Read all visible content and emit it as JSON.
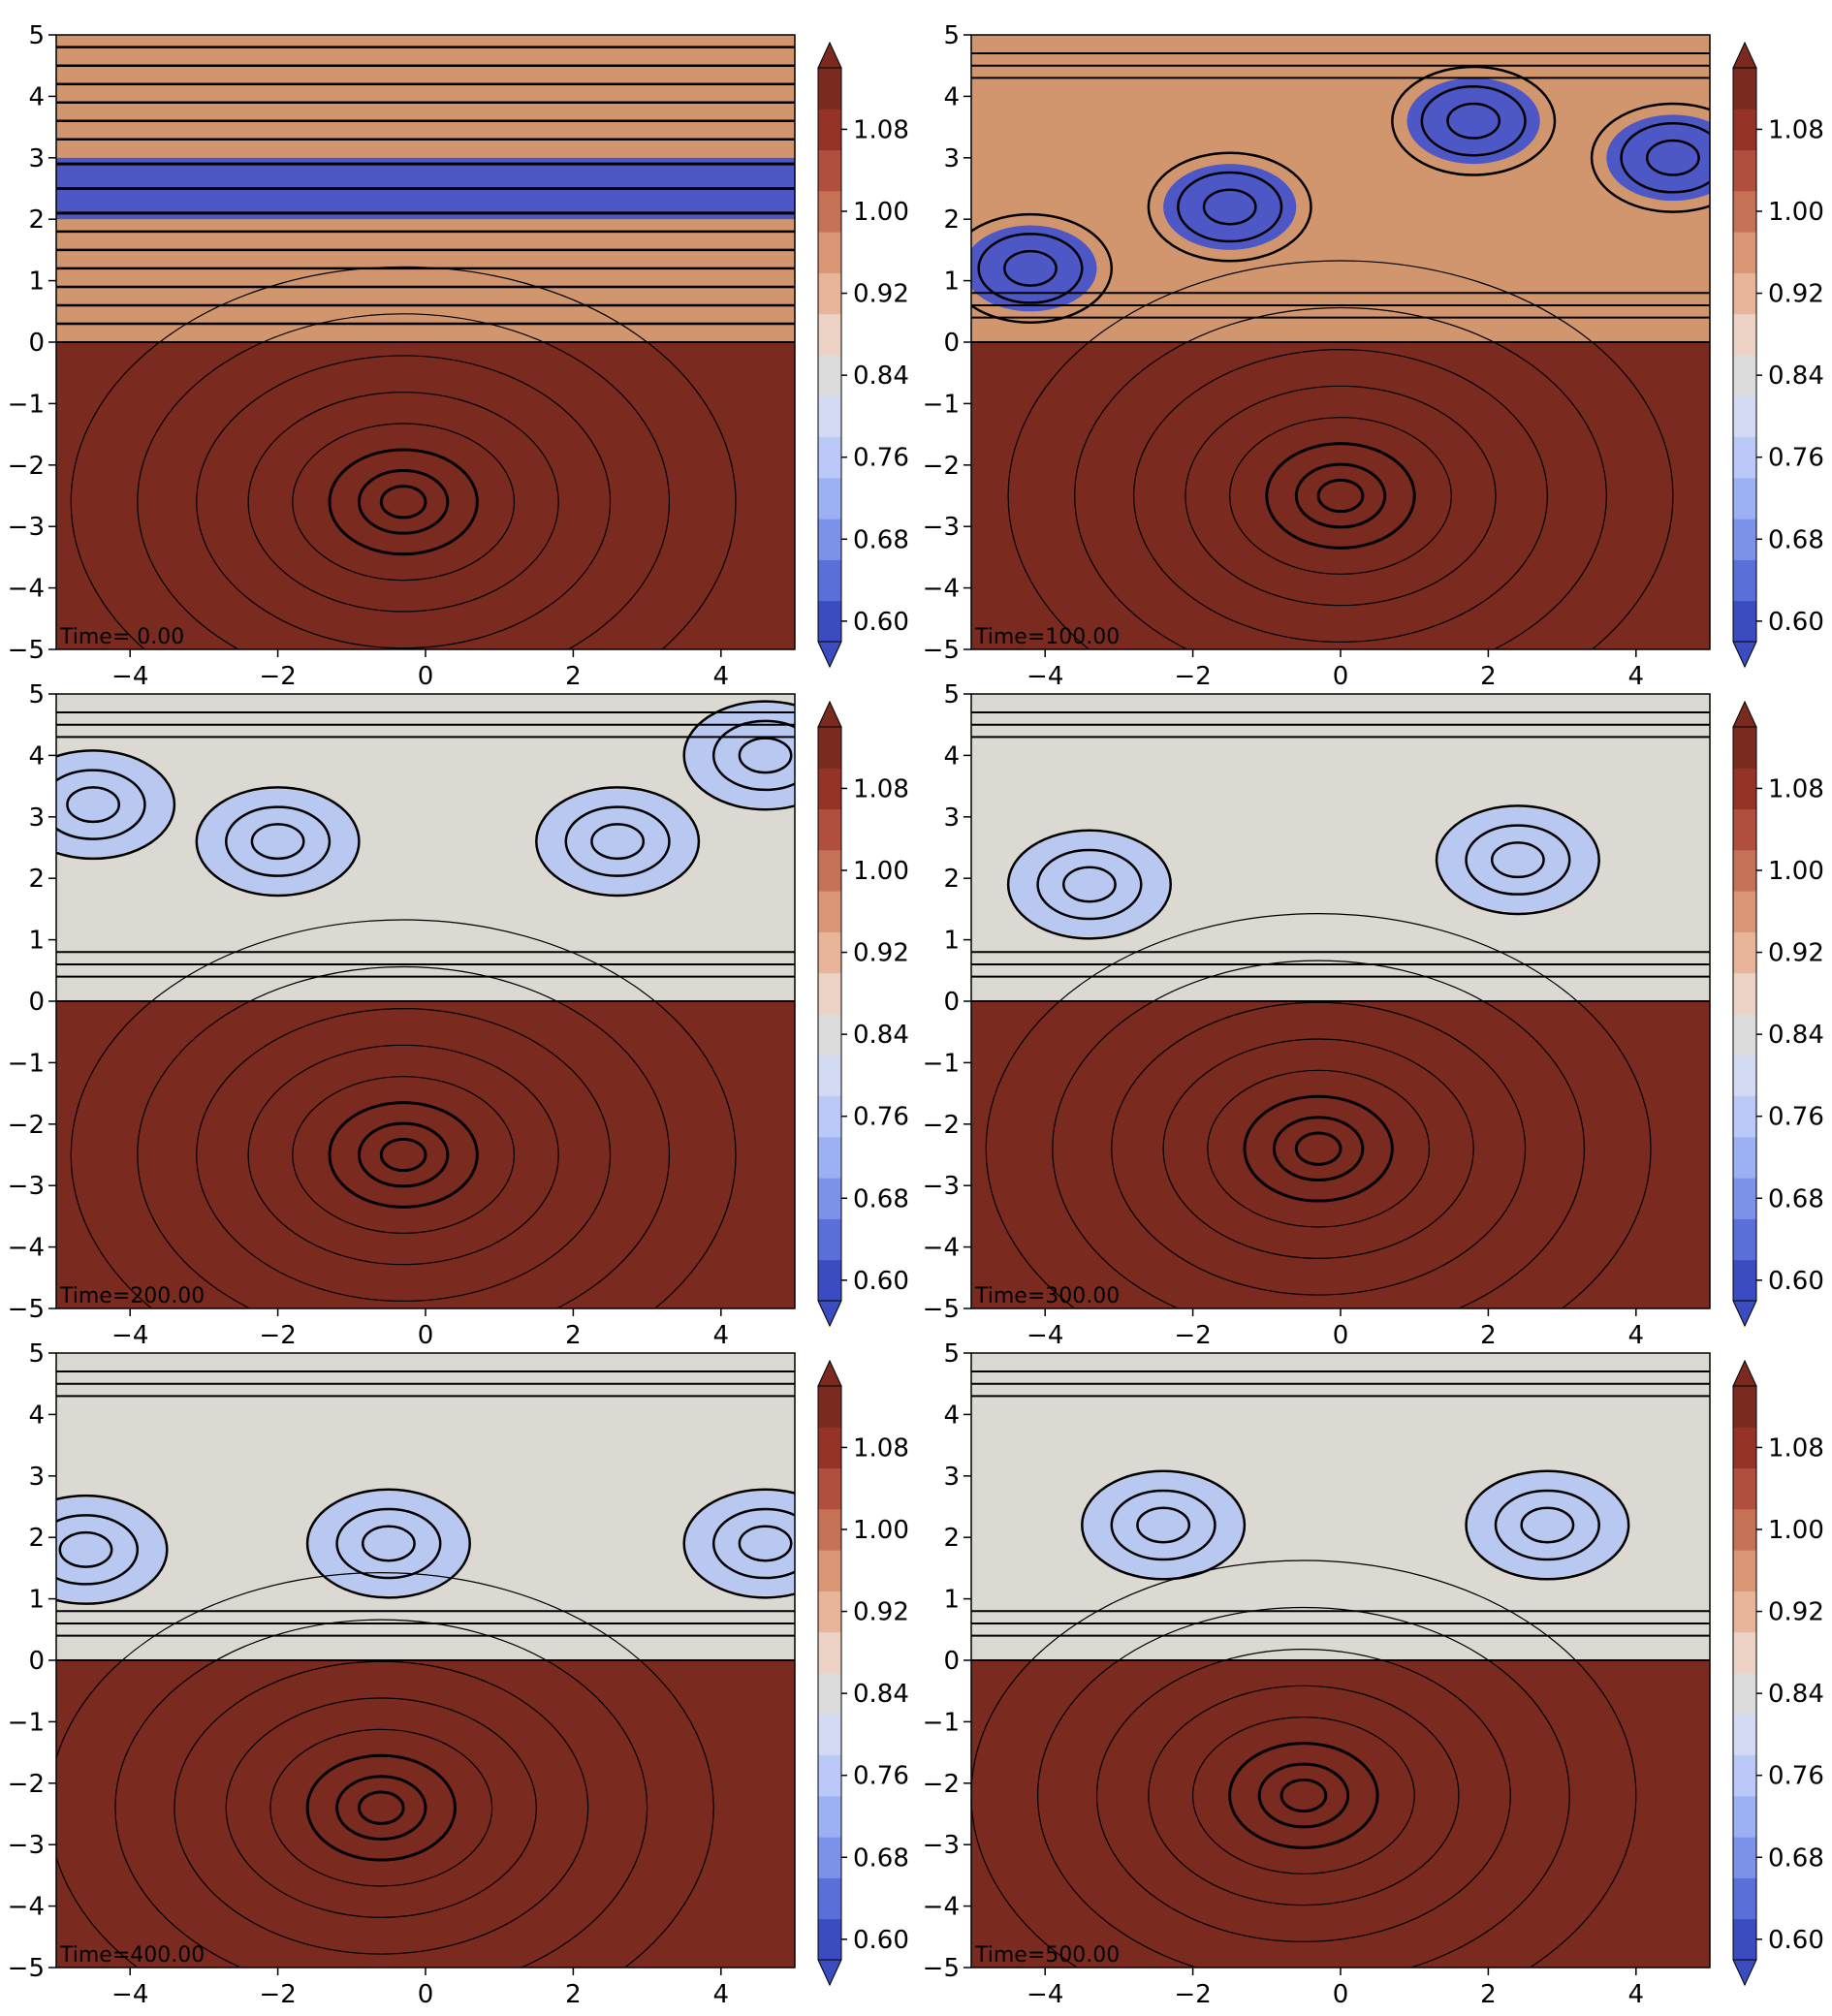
{
  "figure": {
    "type": "grid of contour plots with streamlines",
    "layout": {
      "rows": 3,
      "cols": 2
    }
  },
  "colors": {
    "dark_red": "#7b2a20",
    "tan": "#d2966f",
    "light_grey": "#dcd8d2",
    "light_blue": "#b8c8f0",
    "blue": "#4d57c6",
    "streamline": "#000000"
  },
  "colorbar": {
    "ticks": [
      "1.08",
      "1.00",
      "0.92",
      "0.84",
      "0.76",
      "0.68",
      "0.60"
    ],
    "levels": [
      0.6,
      0.64,
      0.68,
      0.72,
      0.76,
      0.8,
      0.84,
      0.88,
      0.92,
      0.96,
      1.0,
      1.04,
      1.08,
      1.12
    ],
    "level_colors": [
      "#3b4cc0",
      "#5a6fd8",
      "#7b92e8",
      "#9cb1f3",
      "#bac9f8",
      "#d2daf4",
      "#dddcdc",
      "#ecd3c5",
      "#e8b59a",
      "#d99574",
      "#c57256",
      "#b04f3d",
      "#953426",
      "#7b2a20"
    ],
    "extend": "both"
  },
  "chart_data": [
    {
      "type": "contour",
      "annotation": "Time= 0.00",
      "time": 0.0,
      "xlim": [
        -5,
        5
      ],
      "ylim": [
        -5,
        5
      ],
      "xticks": [
        "−4",
        "−2",
        "0",
        "2",
        "4"
      ],
      "yticks": [
        "5",
        "4",
        "3",
        "2",
        "1",
        "0",
        "−1",
        "−2",
        "−3",
        "−4",
        "−5"
      ],
      "vortex_center": [
        -0.3,
        -2.6
      ],
      "upper_state": "horizontal shear layers, blue band between y=2 and y=3"
    },
    {
      "type": "contour",
      "annotation": "Time=100.00",
      "time": 100.0,
      "xlim": [
        -5,
        5
      ],
      "ylim": [
        -5,
        5
      ],
      "xticks": [
        "−4",
        "−2",
        "0",
        "2",
        "4"
      ],
      "yticks": [
        "5",
        "4",
        "3",
        "2",
        "1",
        "0",
        "−1",
        "−2",
        "−3",
        "−4",
        "−5"
      ],
      "vortex_center": [
        0.0,
        -2.5
      ],
      "upper_state": "rolled-up blue billows"
    },
    {
      "type": "contour",
      "annotation": "Time=200.00",
      "time": 200.0,
      "xlim": [
        -5,
        5
      ],
      "ylim": [
        -5,
        5
      ],
      "xticks": [
        "−4",
        "−2",
        "0",
        "2",
        "4"
      ],
      "yticks": [
        "5",
        "4",
        "3",
        "2",
        "1",
        "0",
        "−1",
        "−2",
        "−3",
        "−4",
        "−5"
      ],
      "vortex_center": [
        -0.3,
        -2.5
      ],
      "upper_state": "mixed vortices"
    },
    {
      "type": "contour",
      "annotation": "Time=300.00",
      "time": 300.0,
      "xlim": [
        -5,
        5
      ],
      "ylim": [
        -5,
        5
      ],
      "xticks": [
        "−4",
        "−2",
        "0",
        "2",
        "4"
      ],
      "yticks": [
        "5",
        "4",
        "3",
        "2",
        "1",
        "0",
        "−1",
        "−2",
        "−3",
        "−4",
        "−5"
      ],
      "vortex_center": [
        -0.3,
        -2.4
      ],
      "upper_state": "two large vortices"
    },
    {
      "type": "contour",
      "annotation": "Time=400.00",
      "time": 400.0,
      "xlim": [
        -5,
        5
      ],
      "ylim": [
        -5,
        5
      ],
      "xticks": [
        "−4",
        "−2",
        "0",
        "2",
        "4"
      ],
      "yticks": [
        "5",
        "4",
        "3",
        "2",
        "1",
        "0",
        "−1",
        "−2",
        "−3",
        "−4",
        "−5"
      ],
      "vortex_center": [
        -0.6,
        -2.4
      ],
      "upper_state": "vortices near y=2"
    },
    {
      "type": "contour",
      "annotation": "Time=500.00",
      "time": 500.0,
      "xlim": [
        -5,
        5
      ],
      "ylim": [
        -5,
        5
      ],
      "xticks": [
        "−4",
        "−2",
        "0",
        "2",
        "4"
      ],
      "yticks": [
        "5",
        "4",
        "3",
        "2",
        "1",
        "0",
        "−1",
        "−2",
        "−3",
        "−4",
        "−5"
      ],
      "vortex_center": [
        -0.5,
        -2.2
      ],
      "upper_state": "two vortices near y=2"
    }
  ]
}
